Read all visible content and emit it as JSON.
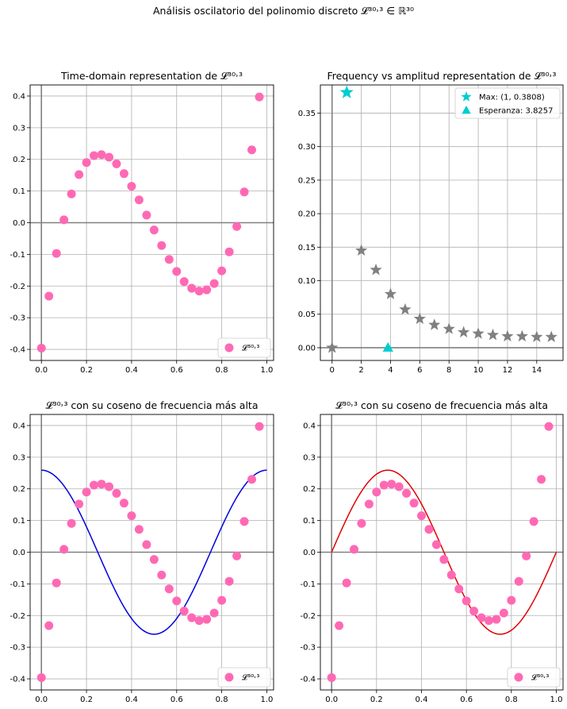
{
  "figure": {
    "suptitle": "Análisis oscilatorio del polinomio discreto 𝓛³⁰˒³ ∈ ℝ³⁰"
  },
  "colors": {
    "points": "#ff69b4",
    "stars": "#808080",
    "cyan": "#00cdd1",
    "blue_cos": "#0000dd",
    "red_sin": "#e00000",
    "axis_line": "#808080",
    "grid": "#b0b0b0"
  },
  "chart_data": [
    {
      "type": "scatter",
      "title": "Time-domain representation de 𝓛³⁰˒³",
      "xlabel": "",
      "ylabel": "",
      "xlim": [
        -0.05,
        1.03
      ],
      "ylim": [
        -0.435,
        0.435
      ],
      "xticks": [
        "0.0",
        "0.2",
        "0.4",
        "0.6",
        "0.8",
        "1.0"
      ],
      "yticks": [
        "-0.4",
        "-0.3",
        "-0.2",
        "-0.1",
        "0.0",
        "0.1",
        "0.2",
        "0.3",
        "0.4"
      ],
      "grid": true,
      "legend": "bottom-right",
      "series": [
        {
          "name": "𝓛³⁰˒³",
          "x": [
            0.0,
            0.0333,
            0.0667,
            0.1,
            0.1333,
            0.1667,
            0.2,
            0.2333,
            0.2667,
            0.3,
            0.3333,
            0.3667,
            0.4,
            0.4333,
            0.4667,
            0.5,
            0.5333,
            0.5667,
            0.6,
            0.6333,
            0.6667,
            0.7,
            0.7333,
            0.7667,
            0.8,
            0.8333,
            0.8667,
            0.9,
            0.9333,
            0.9667
          ],
          "y": [
            -0.396,
            -0.232,
            -0.097,
            0.009,
            0.091,
            0.152,
            0.19,
            0.212,
            0.215,
            0.207,
            0.186,
            0.155,
            0.115,
            0.072,
            0.024,
            -0.023,
            -0.072,
            -0.116,
            -0.154,
            -0.186,
            -0.207,
            -0.216,
            -0.212,
            -0.192,
            -0.152,
            -0.092,
            -0.012,
            0.097,
            0.23,
            0.397
          ]
        }
      ]
    },
    {
      "type": "scatter",
      "title": "Frequency vs amplitud representation de 𝓛³⁰˒³",
      "xlabel": "",
      "ylabel": "",
      "xlim": [
        -0.8,
        15.8
      ],
      "ylim": [
        -0.019,
        0.392
      ],
      "xticks": [
        "0",
        "2",
        "4",
        "6",
        "8",
        "10",
        "12",
        "14"
      ],
      "yticks": [
        "0.00",
        "0.05",
        "0.10",
        "0.15",
        "0.20",
        "0.25",
        "0.30",
        "0.35"
      ],
      "grid": true,
      "legend": "top-right",
      "series": [
        {
          "name": "",
          "x": [
            0,
            2,
            3,
            4,
            5,
            6,
            7,
            8,
            9,
            10,
            11,
            12,
            13,
            14,
            15
          ],
          "y": [
            0.0,
            0.145,
            0.116,
            0.08,
            0.057,
            0.043,
            0.034,
            0.028,
            0.023,
            0.021,
            0.019,
            0.017,
            0.017,
            0.016,
            0.016
          ]
        },
        {
          "name": "Max: (1, 0.3808)",
          "x": [
            1
          ],
          "y": [
            0.3808
          ]
        },
        {
          "name": "Esperanza: 3.8257",
          "x": [
            3.8257
          ],
          "y": [
            0.0
          ]
        }
      ]
    },
    {
      "type": "line",
      "title": "𝓛³⁰˒³ con su coseno de frecuencia más alta",
      "xlabel": "",
      "ylabel": "",
      "xlim": [
        -0.05,
        1.03
      ],
      "ylim": [
        -0.435,
        0.435
      ],
      "xticks": [
        "0.0",
        "0.2",
        "0.4",
        "0.6",
        "0.8",
        "1.0"
      ],
      "yticks": [
        "-0.4",
        "-0.3",
        "-0.2",
        "-0.1",
        "0.0",
        "0.1",
        "0.2",
        "0.3",
        "0.4"
      ],
      "grid": true,
      "legend": "bottom-right",
      "series": [
        {
          "name": "𝓛³⁰˒³",
          "ref": "points"
        },
        {
          "name": "",
          "function": "cos",
          "amplitude": 0.259,
          "frequency": 1
        }
      ]
    },
    {
      "type": "line",
      "title": "𝓛³⁰˒³ con su coseno de frecuencia más alta",
      "xlabel": "",
      "ylabel": "",
      "xlim": [
        -0.05,
        1.03
      ],
      "ylim": [
        -0.435,
        0.435
      ],
      "xticks": [
        "0.0",
        "0.2",
        "0.4",
        "0.6",
        "0.8",
        "1.0"
      ],
      "yticks": [
        "-0.4",
        "-0.3",
        "-0.2",
        "-0.1",
        "0.0",
        "0.1",
        "0.2",
        "0.3",
        "0.4"
      ],
      "grid": true,
      "legend": "bottom-right",
      "series": [
        {
          "name": "𝓛³⁰˒³",
          "ref": "points"
        },
        {
          "name": "",
          "function": "sin",
          "amplitude": 0.259,
          "frequency": 1
        }
      ]
    }
  ]
}
